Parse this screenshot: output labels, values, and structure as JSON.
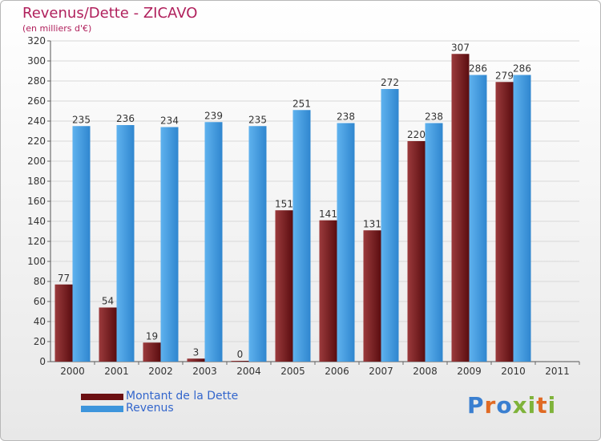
{
  "title": "Revenus/Dette - ZICAVO",
  "subtitle": "(en milliers d'€)",
  "logo": {
    "text": "Proxiti"
  },
  "colors": {
    "dette": "#6b1a1c",
    "revenus": "#4a9ee0",
    "text": "#b0205c"
  },
  "chart_data": {
    "type": "bar",
    "categories": [
      "2000",
      "2001",
      "2002",
      "2003",
      "2004",
      "2005",
      "2006",
      "2007",
      "2008",
      "2009",
      "2010",
      "2011"
    ],
    "series": [
      {
        "name": "Montant de la Dette",
        "values": [
          77,
          54,
          19,
          3,
          0,
          151,
          141,
          131,
          220,
          307,
          279,
          null
        ]
      },
      {
        "name": "Revenus",
        "values": [
          235,
          236,
          234,
          239,
          235,
          251,
          238,
          272,
          238,
          286,
          286,
          null
        ]
      }
    ],
    "yticks": [
      0,
      20,
      40,
      60,
      80,
      100,
      120,
      140,
      160,
      180,
      200,
      220,
      240,
      260,
      280,
      300,
      320
    ],
    "ylim": [
      0,
      320
    ],
    "grid": true,
    "legend": "bottom-left"
  }
}
